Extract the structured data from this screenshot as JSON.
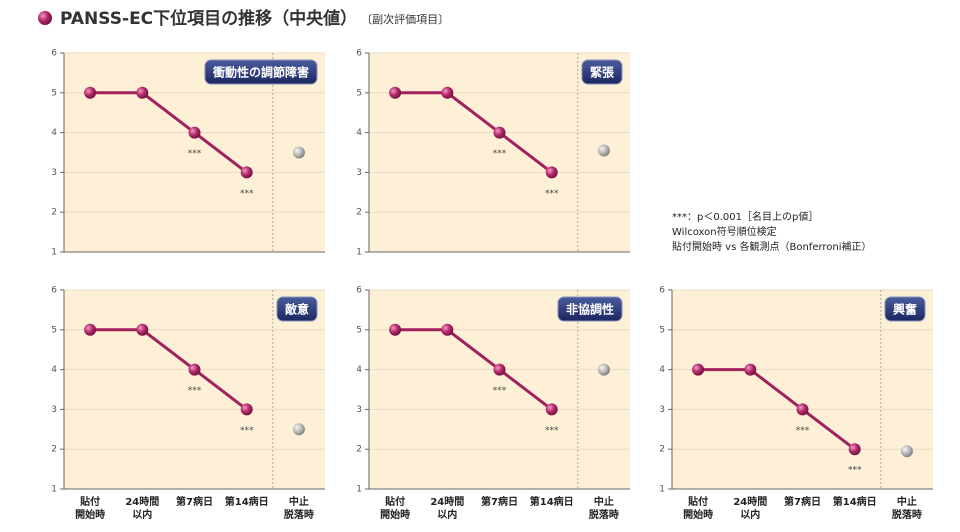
{
  "title": "PANSS-EC下位項目の推移（中央値）",
  "subtitle": "〔副次評価項目〕",
  "note": [
    "***：p＜0.001［名目上のp値］",
    "Wilcoxon符号順位検定",
    "貼付開始時 vs 各観測点（Bonferroni補正）"
  ],
  "chart_data": [
    {
      "type": "line",
      "title": "衝動性の調節障害",
      "ylim": [
        1,
        6
      ],
      "yticks": [
        1,
        2,
        3,
        4,
        5,
        6
      ],
      "grid": true,
      "series": [
        {
          "color": "#a0215e",
          "values": [
            5,
            5,
            4,
            3,
            null
          ]
        },
        {
          "color": "#aaaaaa",
          "values": [
            null,
            null,
            null,
            null,
            3.5
          ]
        }
      ],
      "annotations": [
        null,
        null,
        "***",
        "***",
        null
      ]
    },
    {
      "type": "line",
      "title": "緊張",
      "ylim": [
        1,
        6
      ],
      "yticks": [
        1,
        2,
        3,
        4,
        5,
        6
      ],
      "grid": true,
      "series": [
        {
          "color": "#a0215e",
          "values": [
            5,
            5,
            4,
            3,
            null
          ]
        },
        {
          "color": "#aaaaaa",
          "values": [
            null,
            null,
            null,
            null,
            3.55
          ]
        }
      ],
      "annotations": [
        null,
        null,
        "***",
        "***",
        null
      ]
    },
    {
      "type": "line",
      "title": "敵意",
      "ylim": [
        1,
        6
      ],
      "yticks": [
        1,
        2,
        3,
        4,
        5,
        6
      ],
      "grid": true,
      "categories": [
        [
          "貼付",
          "開始時"
        ],
        [
          "24時間",
          "以内"
        ],
        [
          "第7病日"
        ],
        [
          "第14病日"
        ],
        [
          "中止",
          "脱落時"
        ]
      ],
      "series": [
        {
          "color": "#a0215e",
          "values": [
            5,
            5,
            4,
            3,
            null
          ]
        },
        {
          "color": "#aaaaaa",
          "values": [
            null,
            null,
            null,
            null,
            2.5
          ]
        }
      ],
      "annotations": [
        null,
        null,
        "***",
        "***",
        null
      ]
    },
    {
      "type": "line",
      "title": "非協調性",
      "ylim": [
        1,
        6
      ],
      "yticks": [
        1,
        2,
        3,
        4,
        5,
        6
      ],
      "grid": true,
      "categories": [
        [
          "貼付",
          "開始時"
        ],
        [
          "24時間",
          "以内"
        ],
        [
          "第7病日"
        ],
        [
          "第14病日"
        ],
        [
          "中止",
          "脱落時"
        ]
      ],
      "series": [
        {
          "color": "#a0215e",
          "values": [
            5,
            5,
            4,
            3,
            null
          ]
        },
        {
          "color": "#aaaaaa",
          "values": [
            null,
            null,
            null,
            null,
            4
          ]
        }
      ],
      "annotations": [
        null,
        null,
        "***",
        "***",
        null
      ]
    },
    {
      "type": "line",
      "title": "興奮",
      "ylim": [
        1,
        6
      ],
      "yticks": [
        1,
        2,
        3,
        4,
        5,
        6
      ],
      "grid": true,
      "categories": [
        [
          "貼付",
          "開始時"
        ],
        [
          "24時間",
          "以内"
        ],
        [
          "第7病日"
        ],
        [
          "第14病日"
        ],
        [
          "中止",
          "脱落時"
        ]
      ],
      "series": [
        {
          "color": "#a0215e",
          "values": [
            4,
            4,
            3,
            2,
            null
          ]
        },
        {
          "color": "#aaaaaa",
          "values": [
            null,
            null,
            null,
            null,
            1.95
          ]
        }
      ],
      "annotations": [
        null,
        null,
        "***",
        "***",
        null
      ]
    }
  ]
}
